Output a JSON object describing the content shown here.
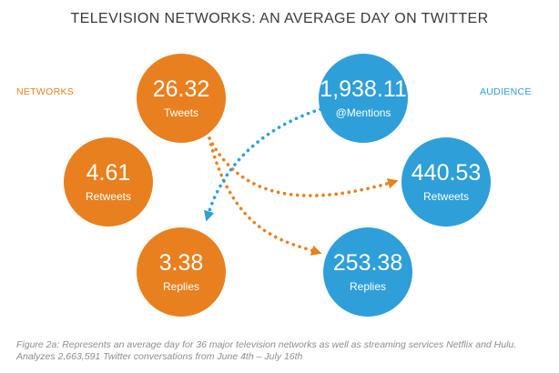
{
  "title": "TELEVISION NETWORKS: AN AVERAGE DAY ON TWITTER",
  "side_labels": {
    "left": "NETWORKS",
    "right": "AUDIENCE"
  },
  "colors": {
    "networks": "#e8801f",
    "audience": "#2e9fd9",
    "caption": "#8d8d8d"
  },
  "networks": {
    "tweets": {
      "value": "26.32",
      "label": "Tweets"
    },
    "retweets": {
      "value": "4.61",
      "label": "Retweets"
    },
    "replies": {
      "value": "3.38",
      "label": "Replies"
    }
  },
  "audience": {
    "mentions": {
      "value": "1,938.11",
      "label": "@Mentions"
    },
    "retweets": {
      "value": "440.53",
      "label": "Retweets"
    },
    "replies": {
      "value": "253.38",
      "label": "Replies"
    }
  },
  "caption": {
    "line1": "Figure 2a: Represents an average day for 36 major television networks as well as streaming services Netflix and Hulu.",
    "line2": "Analyzes 2,663,591 Twitter conversations from June 4th – July 16th"
  }
}
